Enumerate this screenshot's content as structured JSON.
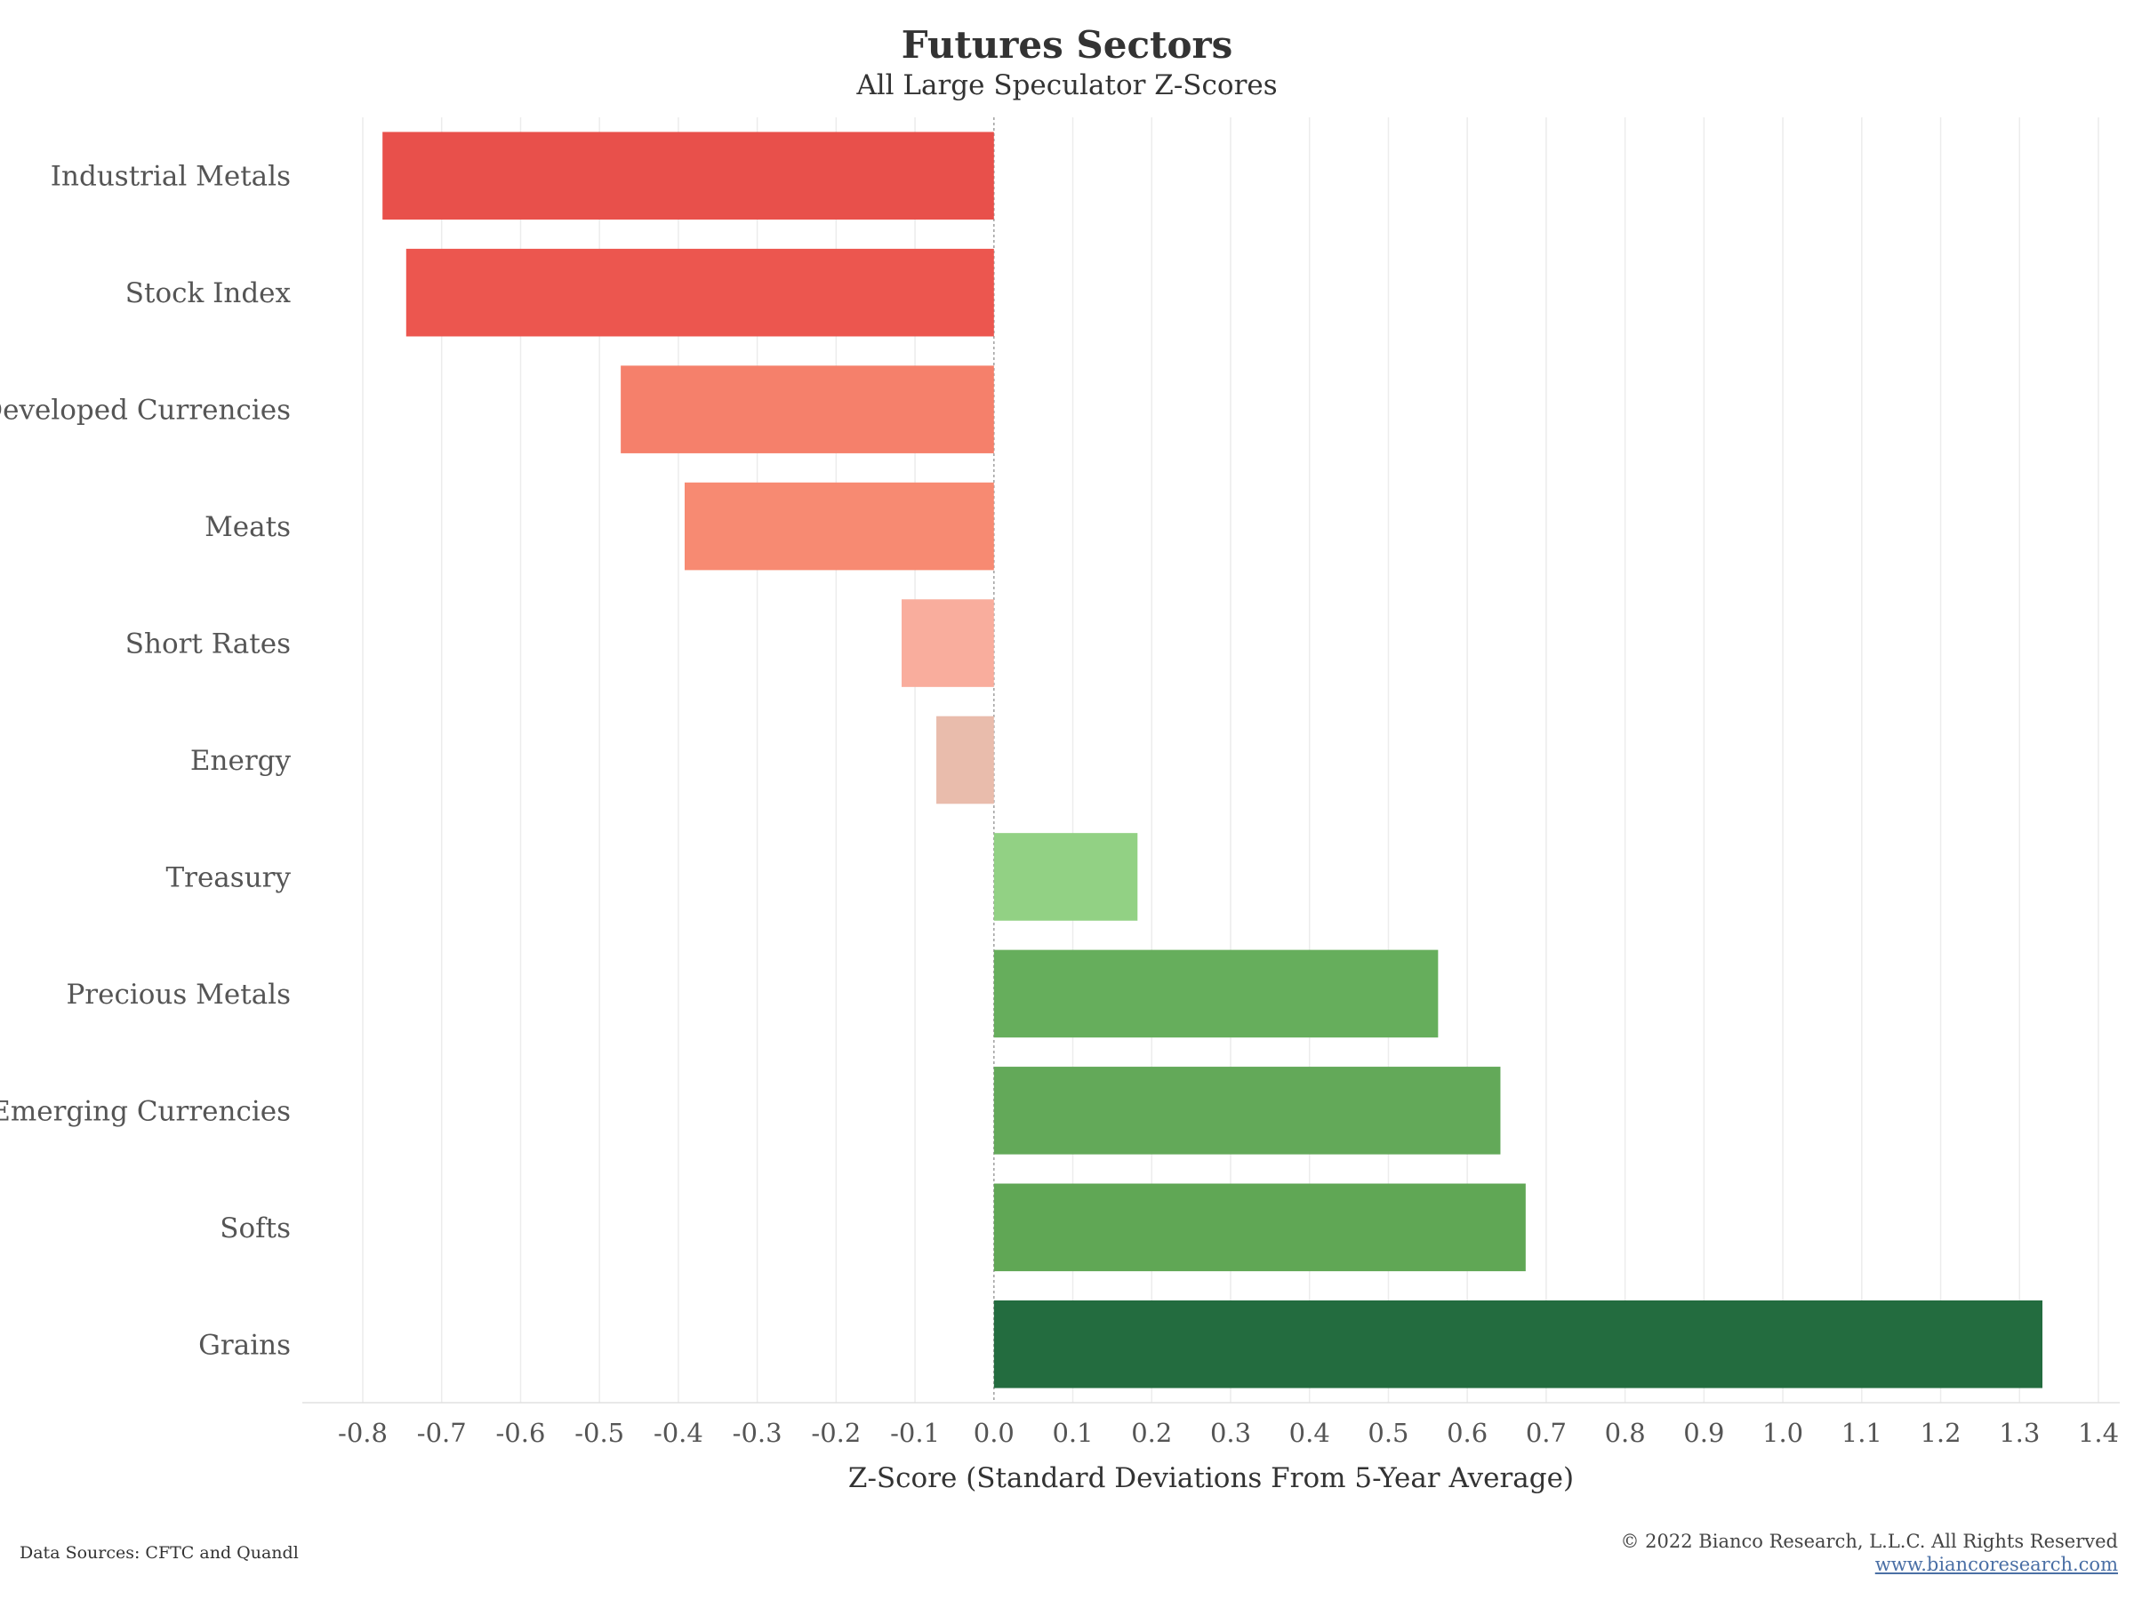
{
  "header": {
    "title": "Futures Sectors",
    "subtitle": "All Large Speculator Z-Scores"
  },
  "footer": {
    "source": "Data Sources: CFTC and Quandl",
    "copyright": "© 2022 Bianco Research, L.L.C. All Rights Reserved",
    "website": "www.biancoresearch.com"
  },
  "chart_data": {
    "type": "bar",
    "orientation": "horizontal",
    "title": "Futures Sectors",
    "subtitle": "All Large Speculator Z-Scores",
    "xlabel": "Z-Score (Standard Deviations From 5-Year Average)",
    "ylabel": "",
    "xlim": [
      -0.8,
      1.4
    ],
    "xticks": [
      "-0.8",
      "-0.7",
      "-0.6",
      "-0.5",
      "-0.4",
      "-0.3",
      "-0.2",
      "-0.1",
      "0.0",
      "0.1",
      "0.2",
      "0.3",
      "0.4",
      "0.5",
      "0.6",
      "0.7",
      "0.8",
      "0.9",
      "1.0",
      "1.1",
      "1.2",
      "1.3",
      "1.4"
    ],
    "grid": "vertical",
    "categories": [
      "Industrial Metals",
      "Stock Index",
      "Developed Currencies",
      "Meats",
      "Short Rates",
      "Energy",
      "Treasury",
      "Precious Metals",
      "Emerging Currencies",
      "Softs",
      "Grains"
    ],
    "values": [
      -0.775,
      -0.745,
      -0.473,
      -0.392,
      -0.117,
      -0.073,
      0.182,
      0.563,
      0.642,
      0.674,
      1.329
    ],
    "colors": [
      "#e8504b",
      "#ec564f",
      "#f5806b",
      "#f78a72",
      "#f9ad9d",
      "#e9bcac",
      "#92d184",
      "#66ae5c",
      "#63a959",
      "#60a755",
      "#236c3f"
    ]
  }
}
